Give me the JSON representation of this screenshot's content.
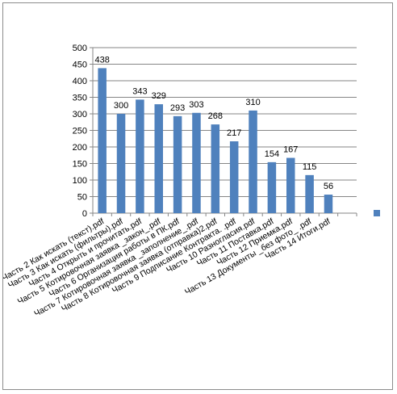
{
  "chart_data": {
    "type": "bar",
    "title": "",
    "xlabel": "",
    "ylabel": "",
    "ylim": [
      0,
      500
    ],
    "yticks": [
      0,
      50,
      100,
      150,
      200,
      250,
      300,
      350,
      400,
      450,
      500
    ],
    "grid": true,
    "legend": "right",
    "bar_color": "#4f81bd",
    "categories": [
      "Часть 2 Как искать (текст).pdf",
      "Часть 3 Как искать (фильтры).pdf",
      "Часть 4 Открыть и прочитать.pdf",
      "Часть 5 Котировочная заявка _закон_.pdf",
      "Часть 6 Организация работы в ПК.pdf",
      "Часть 7 Котировочная заявка _заполнение_.pdf",
      "Часть 8 Котировочная заявка (отправка)2.pdf",
      "Часть 9 Подписание Контракта. .pdf",
      "Часть 10 Разногласия.pdf",
      "Часть 11 Поставка.pdf",
      "Часть 12 Приемка.pdf",
      "Часть 13 Документы _без фото_ .pdf",
      "Часть 14 Итоги.pdf",
      ""
    ],
    "values": [
      438,
      300,
      343,
      329,
      293,
      303,
      268,
      217,
      310,
      154,
      167,
      115,
      56,
      null
    ]
  }
}
